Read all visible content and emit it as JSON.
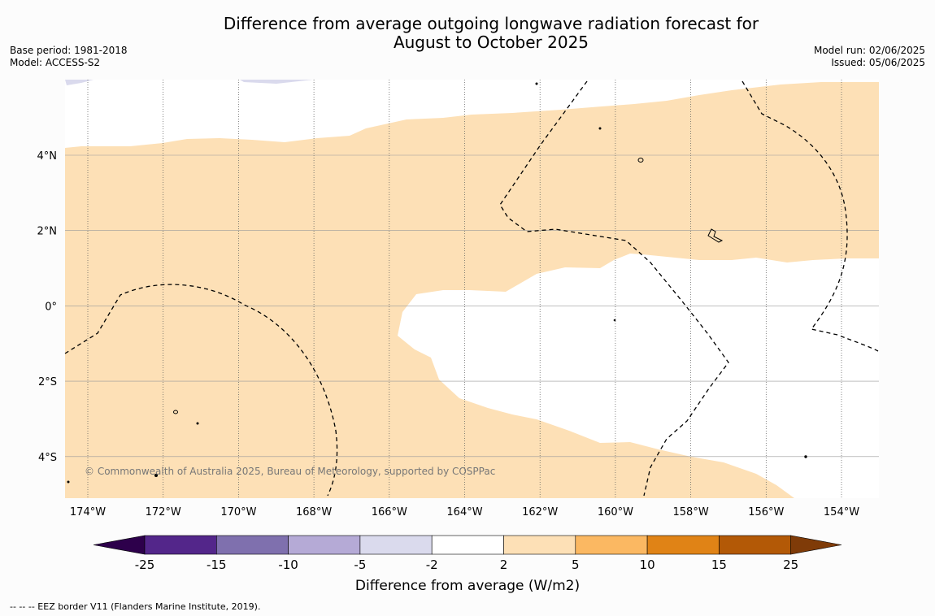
{
  "title_line1": "Difference from average outgoing longwave radiation forecast for",
  "title_line2": "August to October 2025",
  "base_period": "Base period: 1981-2018",
  "model": "Model: ACCESS-S2",
  "model_run": "Model run: 02/06/2025",
  "issued": "Issued: 05/06/2025",
  "copyright": "© Commonwealth of Australia 2025, Bureau of Meteorology, supported by COSPPac",
  "footer": "--  --  -- EEZ border V11 (Flanders Marine Institute, 2019).",
  "map": {
    "lon_labels": [
      "174°W",
      "172°W",
      "170°W",
      "168°W",
      "166°W",
      "164°W",
      "162°W",
      "160°W",
      "158°W",
      "156°W",
      "154°W"
    ],
    "lat_labels": [
      "4°N",
      "2°N",
      "0°",
      "2°S",
      "4°S"
    ]
  },
  "colorbar": {
    "title": "Difference from average (W/m2)",
    "ticks": [
      "-25",
      "-15",
      "-10",
      "-5",
      "-2",
      "2",
      "5",
      "10",
      "15",
      "25"
    ],
    "colors": [
      "#53268a",
      "#7f70ae",
      "#b5aad6",
      "#dadaed",
      "#ffffff",
      "#fde0b6",
      "#fbb862",
      "#e08316",
      "#b35906"
    ],
    "extend_low": "#2d004b",
    "extend_high": "#7f3b08"
  },
  "colors": {
    "positive_fill": "#fde0b6",
    "negative_fill": "#dadaed"
  }
}
